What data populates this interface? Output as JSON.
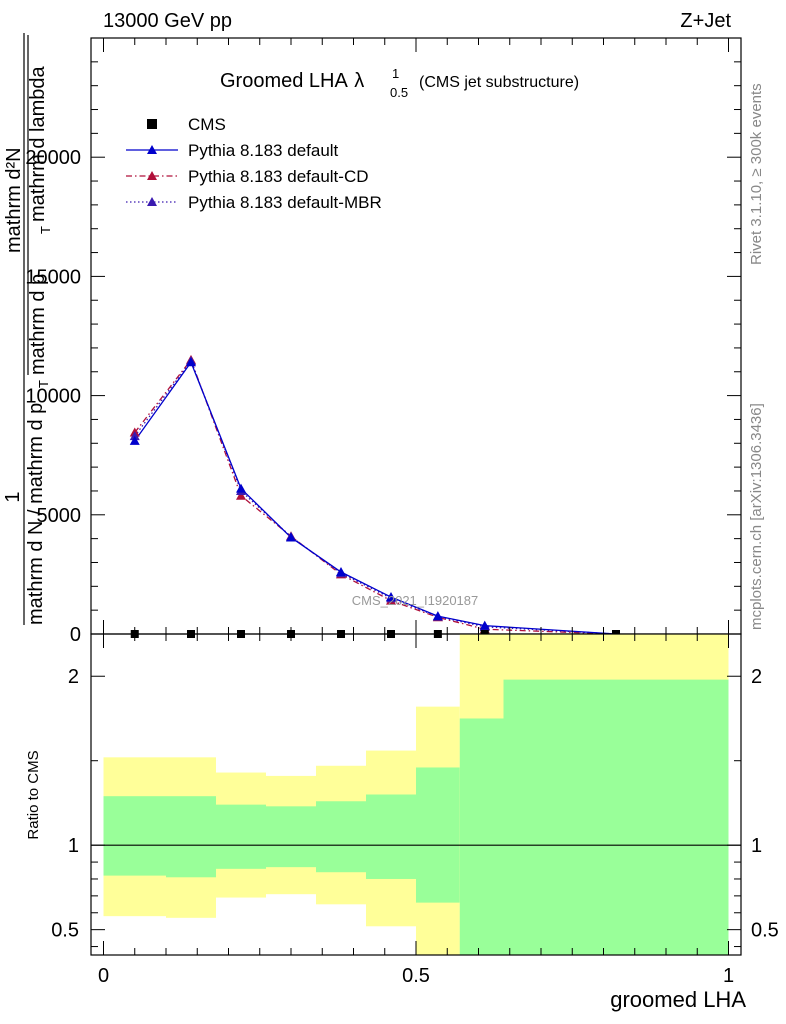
{
  "chart_data": [
    {
      "type": "line",
      "title": "Groomed LHA",
      "title_symbol": "λ",
      "title_sub": "0.5",
      "title_sup": "1",
      "title_note": "(CMS jet substructure)",
      "header_left": "13000 GeV pp",
      "header_right": "Z+Jet",
      "ylabel_parts": [
        "1",
        "mathrm d N / mathrm d p",
        "T",
        "mathrm d²N",
        "mathrm d p",
        "T",
        "mathrm d lambda"
      ],
      "xlim": [
        -0.02,
        1.02
      ],
      "ylim": [
        0,
        25000
      ],
      "yticks": [
        0,
        5000,
        10000,
        15000,
        20000
      ],
      "ytick_labels": [
        "0",
        "5000",
        "10000",
        "15000",
        "20000"
      ],
      "watermark": "CMS_2021_I1920187",
      "right_label_top": "Rivet 3.1.10, ≥ 300k events",
      "right_label_bottom": "mcplots.cern.ch [arXiv:1306.3436]",
      "legend": [
        "CMS",
        "Pythia 8.183 default",
        "Pythia 8.183 default-CD",
        "Pythia 8.183 default-MBR"
      ],
      "series": [
        {
          "name": "CMS",
          "color": "#000000",
          "x": [
            0.05,
            0.14,
            0.22,
            0.3,
            0.38,
            0.46,
            0.535,
            0.61,
            0.82
          ],
          "values": [
            0,
            0,
            0,
            0,
            0,
            0,
            0,
            0,
            0
          ]
        },
        {
          "name": "Pythia 8.183 default",
          "color": "#0000cc",
          "x": [
            0.05,
            0.14,
            0.22,
            0.3,
            0.38,
            0.46,
            0.535,
            0.61,
            0.82
          ],
          "values": [
            8100,
            11400,
            6100,
            4050,
            2600,
            1550,
            750,
            350,
            0
          ]
        },
        {
          "name": "Pythia 8.183 default-CD",
          "color": "#b0103a",
          "x": [
            0.05,
            0.14,
            0.22,
            0.3,
            0.38,
            0.46,
            0.535,
            0.61,
            0.82
          ],
          "values": [
            8450,
            11500,
            5800,
            4100,
            2500,
            1400,
            700,
            200,
            0
          ]
        },
        {
          "name": "Pythia 8.183 default-MBR",
          "color": "#3a1ab0",
          "x": [
            0.05,
            0.14,
            0.22,
            0.3,
            0.38,
            0.46,
            0.535,
            0.61,
            0.82
          ],
          "values": [
            8300,
            11450,
            6000,
            4080,
            2550,
            1500,
            730,
            300,
            0
          ]
        }
      ]
    },
    {
      "type": "area",
      "ylabel": "Ratio to CMS",
      "xlabel": "groomed LHA",
      "xlim": [
        -0.02,
        1.02
      ],
      "ylim": [
        0.35,
        2.25
      ],
      "xticks": [
        0,
        0.5,
        1
      ],
      "xtick_labels": [
        "0",
        "0.5",
        "1"
      ],
      "yticks": [
        0.5,
        1,
        2
      ],
      "ytick_labels": [
        "0.5",
        "1",
        "2"
      ],
      "bins": [
        0,
        0.1,
        0.18,
        0.26,
        0.34,
        0.42,
        0.5,
        0.57,
        0.64,
        1.0
      ],
      "yellow_band": [
        [
          0.58,
          1.52
        ],
        [
          0.57,
          1.52
        ],
        [
          0.69,
          1.43
        ],
        [
          0.71,
          1.41
        ],
        [
          0.65,
          1.47
        ],
        [
          0.52,
          1.56
        ],
        [
          0.35,
          1.82
        ],
        [
          0.35,
          2.25
        ],
        [
          0.35,
          2.25
        ]
      ],
      "green_band": [
        [
          0.82,
          1.29
        ],
        [
          0.81,
          1.29
        ],
        [
          0.86,
          1.24
        ],
        [
          0.87,
          1.23
        ],
        [
          0.84,
          1.26
        ],
        [
          0.8,
          1.3
        ],
        [
          0.66,
          1.46
        ],
        [
          0.35,
          1.75
        ],
        [
          0.35,
          1.98
        ]
      ],
      "colors": {
        "yellow": "#ffff99",
        "green": "#99ff99"
      }
    }
  ]
}
